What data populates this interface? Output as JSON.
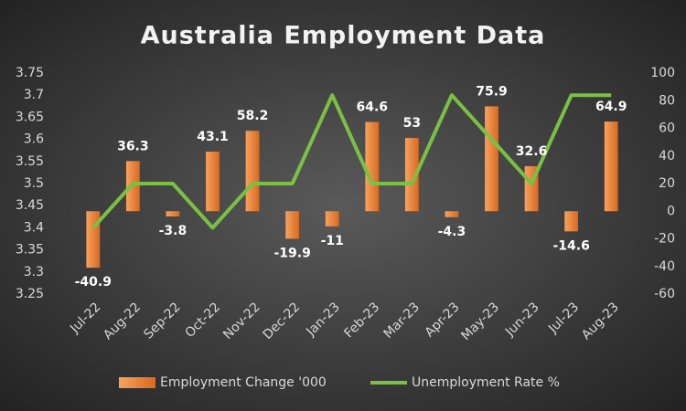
{
  "chart_data": {
    "type": "combo",
    "title": "Australia Employment Data",
    "categories": [
      "Jul-22",
      "Aug-22",
      "Sep-22",
      "Oct-22",
      "Nov-22",
      "Dec-22",
      "Jan-23",
      "Feb-23",
      "Mar-23",
      "Apr-23",
      "May-23",
      "Jun-23",
      "Jul-23",
      "Aug-23"
    ],
    "series": [
      {
        "name": "Employment Change '000",
        "type": "bar",
        "axis": "y2",
        "color": "#ed7d31",
        "data_labels": true,
        "values": [
          -40.9,
          36.3,
          -3.8,
          43.1,
          58.2,
          -19.9,
          -11,
          64.6,
          53,
          -4.3,
          75.9,
          32.6,
          -14.6,
          64.9
        ]
      },
      {
        "name": "Unemployment Rate %",
        "type": "line",
        "axis": "y",
        "color": "#7ac143",
        "values": [
          3.4,
          3.5,
          3.5,
          3.4,
          3.5,
          3.5,
          3.7,
          3.5,
          3.5,
          3.7,
          3.6,
          3.5,
          3.7,
          3.7
        ]
      }
    ],
    "ylim": [
      3.25,
      3.75
    ],
    "yticks": [
      3.25,
      3.3,
      3.35,
      3.4,
      3.45,
      3.5,
      3.55,
      3.6,
      3.65,
      3.7,
      3.75
    ],
    "y2lim": [
      -60,
      100
    ],
    "y2ticks": [
      -60,
      -40,
      -20,
      0,
      20,
      40,
      60,
      80,
      100
    ],
    "grid": false,
    "legend": "bottom"
  }
}
